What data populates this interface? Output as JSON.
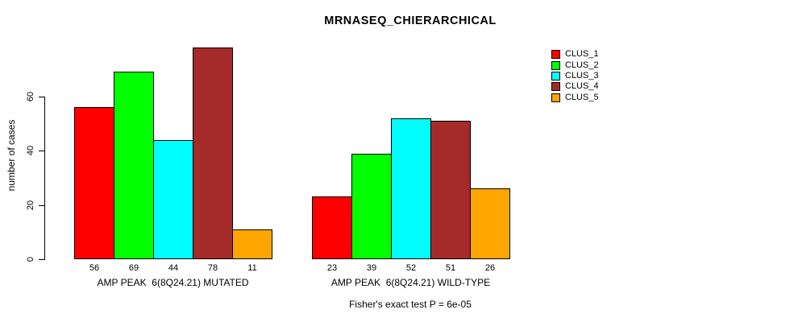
{
  "chart_data": {
    "type": "bar",
    "title": "MRNASEQ_CHIERARCHICAL",
    "xlabel": "",
    "ylabel": "number of cases",
    "ylim": [
      0,
      80
    ],
    "yticks": [
      0,
      20,
      40,
      60
    ],
    "grid": false,
    "legend_position": "right",
    "series": [
      {
        "name": "CLUS_1",
        "color": "#ff0000"
      },
      {
        "name": "CLUS_2",
        "color": "#00ff00"
      },
      {
        "name": "CLUS_3",
        "color": "#00ffff"
      },
      {
        "name": "CLUS_4",
        "color": "#a52a2a"
      },
      {
        "name": "CLUS_5",
        "color": "#ffa500"
      }
    ],
    "groups": [
      {
        "label": "AMP PEAK  6(8Q24.21) MUTATED",
        "values": [
          56,
          69,
          44,
          78,
          11
        ]
      },
      {
        "label": "AMP PEAK  6(8Q24.21) WILD-TYPE",
        "values": [
          23,
          39,
          52,
          51,
          26
        ]
      }
    ],
    "bar_value_labels": [
      [
        56,
        69,
        44,
        78,
        11
      ],
      [
        23,
        39,
        52,
        51,
        26
      ]
    ],
    "annotation": "Fisher's exact test P = 6e-05"
  }
}
